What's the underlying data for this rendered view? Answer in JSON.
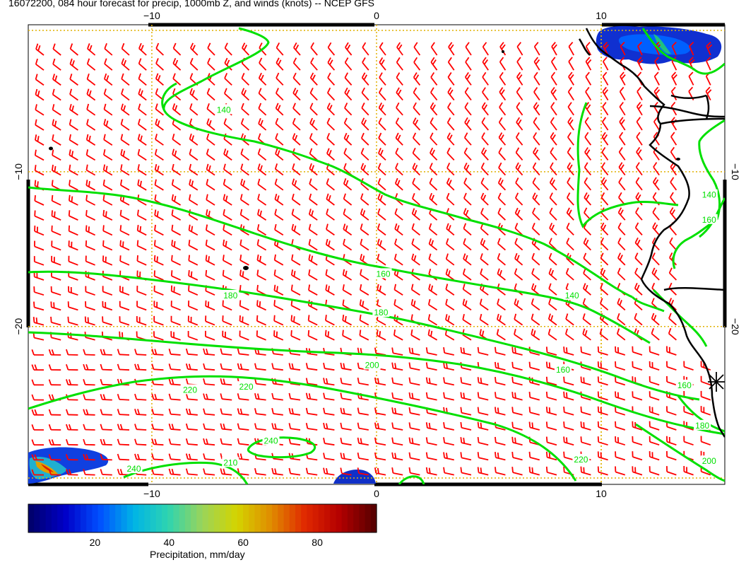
{
  "title": "16072200, 084 hour forecast for precip, 1000mb Z, and winds (knots) -- NCEP GFS",
  "map": {
    "lon_range": [
      -15.5,
      15.5
    ],
    "lat_range": [
      -30.2,
      -0.5
    ],
    "lon_ticks": [
      -10,
      0,
      10
    ],
    "lat_ticks": [
      -10,
      -20
    ],
    "top_tick_labels": [
      "−10",
      "0",
      "10"
    ],
    "bottom_tick_labels": [
      "−10",
      "0",
      "10"
    ],
    "left_tick_labels": [
      "−10",
      "−20"
    ],
    "right_tick_labels": [
      "−10",
      "−20"
    ],
    "gridline_color": "#e0b000",
    "contour_color": "#00e000",
    "barb_color": "#ff0000",
    "coast_color": "#000000",
    "contour_labels": [
      {
        "text": "140",
        "lon": -6.8,
        "lat": -6.0
      },
      {
        "text": "160",
        "lon": 0.3,
        "lat": -16.6
      },
      {
        "text": "180",
        "lon": -6.5,
        "lat": -18.0
      },
      {
        "text": "140",
        "lon": 8.7,
        "lat": -18.0
      },
      {
        "text": "180",
        "lon": 0.2,
        "lat": -19.1
      },
      {
        "text": "200",
        "lon": -0.2,
        "lat": -22.5
      },
      {
        "text": "160",
        "lon": 8.3,
        "lat": -22.8
      },
      {
        "text": "220",
        "lon": -8.3,
        "lat": -24.1
      },
      {
        "text": "220",
        "lon": -5.8,
        "lat": -23.9
      },
      {
        "text": "160",
        "lon": 13.7,
        "lat": -23.8
      },
      {
        "text": "240",
        "lon": -4.7,
        "lat": -27.4
      },
      {
        "text": "240",
        "lon": -10.8,
        "lat": -29.2
      },
      {
        "text": "210",
        "lon": -6.5,
        "lat": -28.8
      },
      {
        "text": "220",
        "lon": 9.1,
        "lat": -28.6
      },
      {
        "text": "180",
        "lon": 14.5,
        "lat": -26.4
      },
      {
        "text": "200",
        "lon": 14.8,
        "lat": -28.7
      },
      {
        "text": "160",
        "lon": 14.8,
        "lat": -13.1
      },
      {
        "text": "140",
        "lon": 14.8,
        "lat": -11.5
      }
    ]
  },
  "colorbar": {
    "label": "Precipitation, mm/day",
    "range": [
      2,
      96
    ],
    "ticks": [
      20,
      40,
      60,
      80
    ],
    "tick_labels": [
      "20",
      "40",
      "60",
      "80"
    ],
    "colors": [
      "#00006e",
      "#0000c8",
      "#0050ff",
      "#00b4e6",
      "#2ed4b0",
      "#9ad45a",
      "#d4d400",
      "#e08c00",
      "#e02800",
      "#b40000",
      "#5a0000"
    ]
  }
}
